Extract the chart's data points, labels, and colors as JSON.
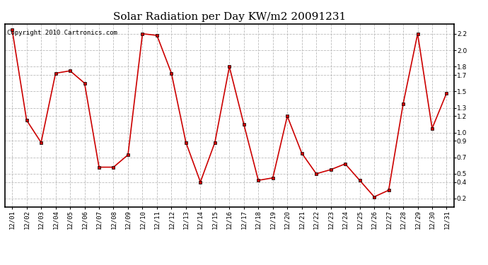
{
  "title": "Solar Radiation per Day KW/m2 20091231",
  "copyright_text": "Copyright 2010 Cartronics.com",
  "dates": [
    "12/01",
    "12/02",
    "12/03",
    "12/04",
    "12/05",
    "12/06",
    "12/07",
    "12/08",
    "12/09",
    "12/10",
    "12/11",
    "12/12",
    "12/13",
    "12/14",
    "12/15",
    "12/16",
    "12/17",
    "12/18",
    "12/19",
    "12/20",
    "12/21",
    "12/22",
    "12/23",
    "12/24",
    "12/25",
    "12/26",
    "12/27",
    "12/28",
    "12/29",
    "12/30",
    "12/31"
  ],
  "values": [
    2.25,
    1.15,
    0.88,
    1.72,
    1.75,
    1.6,
    0.58,
    0.58,
    0.73,
    2.2,
    2.18,
    1.72,
    0.88,
    0.4,
    0.88,
    1.8,
    1.1,
    0.42,
    0.45,
    1.2,
    0.75,
    0.5,
    0.55,
    0.62,
    0.42,
    0.22,
    0.3,
    1.35,
    2.2,
    1.05,
    1.48
  ],
  "line_color": "#cc0000",
  "marker_size": 3,
  "marker_color": "#000000",
  "ylim_min": 0.1,
  "ylim_max": 2.32,
  "yticks": [
    0.2,
    0.4,
    0.5,
    0.7,
    0.9,
    1.0,
    1.2,
    1.3,
    1.5,
    1.7,
    1.8,
    2.0,
    2.2
  ],
  "grid_color": "#bbbbbb",
  "grid_style": "--",
  "background_color": "#ffffff",
  "title_fontsize": 11,
  "tick_fontsize": 6.5,
  "copyright_fontsize": 6.5
}
